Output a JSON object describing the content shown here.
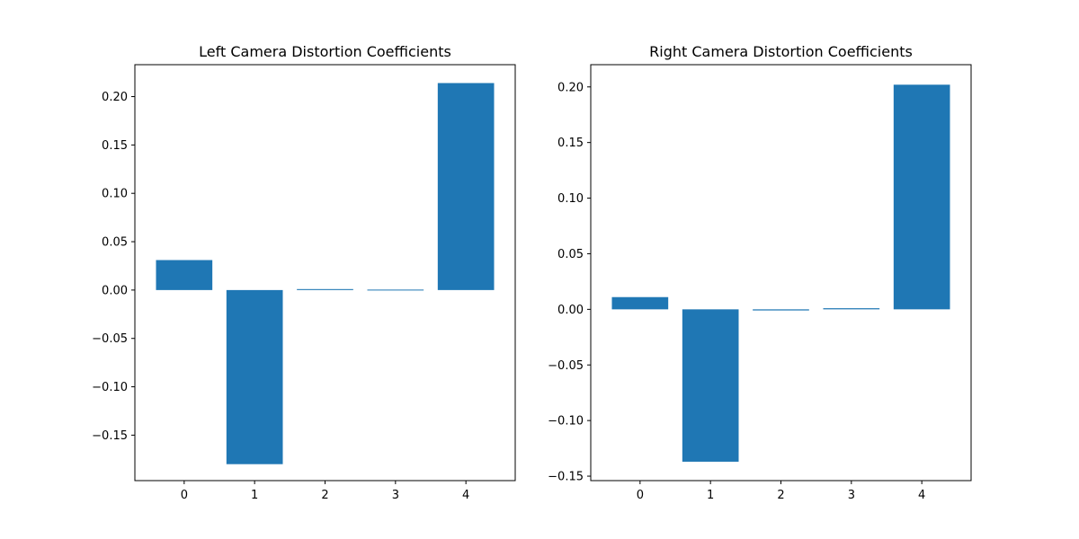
{
  "figure": {
    "bar_color": "#1f77b4",
    "axis_color": "#000000",
    "background": "#ffffff"
  },
  "chart_data": [
    {
      "type": "bar",
      "title": "Left Camera Distortion Coefficients",
      "xlabel": "",
      "ylabel": "",
      "categories": [
        "0",
        "1",
        "2",
        "3",
        "4"
      ],
      "values": [
        0.031,
        -0.18,
        0.001,
        0.0,
        0.214
      ],
      "ylim": [
        -0.197,
        0.233
      ],
      "yticks": [
        -0.15,
        -0.1,
        -0.05,
        0.0,
        0.05,
        0.1,
        0.15,
        0.2
      ],
      "ytick_labels": [
        "−0.15",
        "−0.10",
        "−0.05",
        "0.00",
        "0.05",
        "0.10",
        "0.15",
        "0.20"
      ],
      "xtick_labels": [
        "0",
        "1",
        "2",
        "3",
        "4"
      ],
      "grid": false,
      "legend": "none"
    },
    {
      "type": "bar",
      "title": "Right Camera Distortion Coefficients",
      "xlabel": "",
      "ylabel": "",
      "categories": [
        "0",
        "1",
        "2",
        "3",
        "4"
      ],
      "values": [
        0.011,
        -0.137,
        -0.001,
        0.001,
        0.202
      ],
      "ylim": [
        -0.154,
        0.22
      ],
      "yticks": [
        -0.15,
        -0.1,
        -0.05,
        0.0,
        0.05,
        0.1,
        0.15,
        0.2
      ],
      "ytick_labels": [
        "−0.15",
        "−0.10",
        "−0.05",
        "0.00",
        "0.05",
        "0.10",
        "0.15",
        "0.20"
      ],
      "xtick_labels": [
        "0",
        "1",
        "2",
        "3",
        "4"
      ],
      "grid": false,
      "legend": "none"
    }
  ]
}
